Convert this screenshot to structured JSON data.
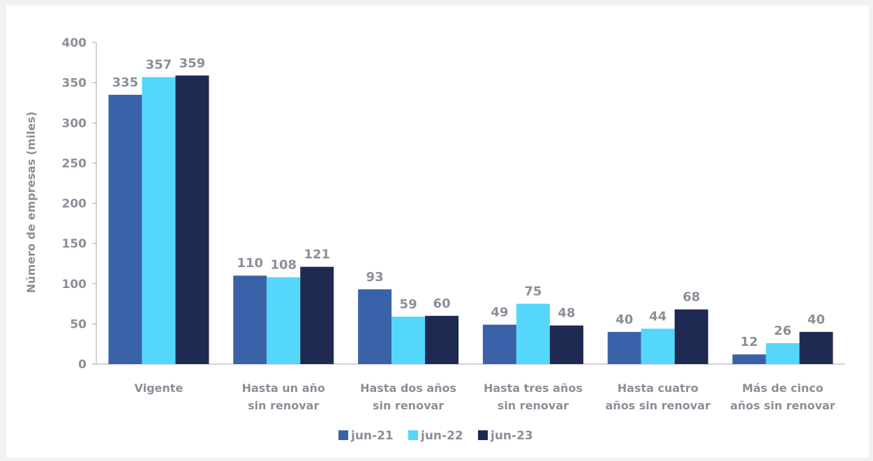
{
  "chart_data": {
    "type": "bar",
    "title": "",
    "xlabel": "",
    "ylabel": "Número de empresas (miles)",
    "ylim": [
      0,
      400
    ],
    "yticks": [
      0,
      50,
      100,
      150,
      200,
      250,
      300,
      350,
      400
    ],
    "categories": [
      [
        "Vigente"
      ],
      [
        "Hasta un año",
        "sin renovar"
      ],
      [
        "Hasta dos años",
        "sin renovar"
      ],
      [
        "Hasta tres años",
        "sin renovar"
      ],
      [
        "Hasta cuatro",
        "años sin renovar"
      ],
      [
        "Más de cinco",
        "años sin renovar"
      ]
    ],
    "series": [
      {
        "name": "jun-21",
        "color": "#3a62a8",
        "values": [
          335,
          110,
          93,
          49,
          40,
          12
        ]
      },
      {
        "name": "jun-22",
        "color": "#55d6fb",
        "values": [
          357,
          108,
          59,
          75,
          44,
          26
        ]
      },
      {
        "name": "jun-23",
        "color": "#1f2a52",
        "values": [
          359,
          121,
          60,
          48,
          68,
          40
        ]
      }
    ],
    "grid": false,
    "legend_position": "bottom-center",
    "data_labels": true
  }
}
